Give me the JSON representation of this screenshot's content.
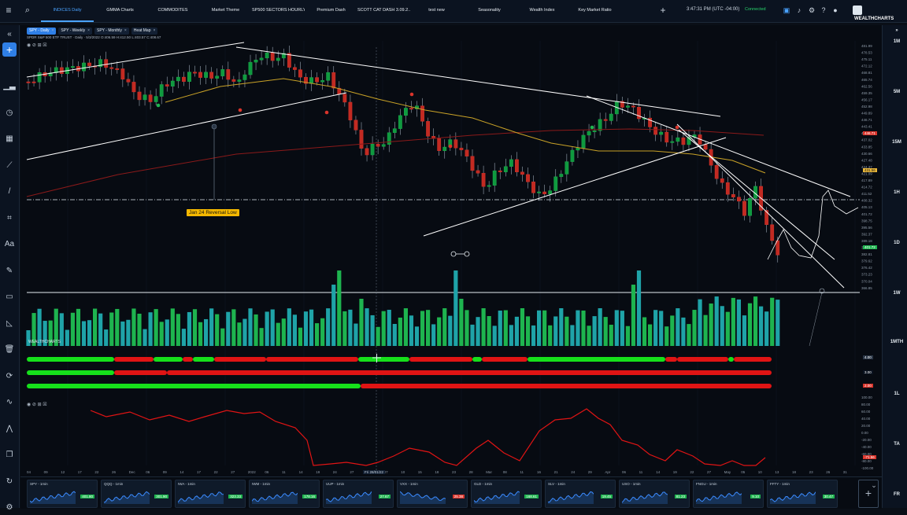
{
  "tabs": [
    {
      "label": "INDICES Daily",
      "active": true
    },
    {
      "label": "GMMA Charts",
      "active": false
    },
    {
      "label": "COMMODITES",
      "active": false
    },
    {
      "label": "Market Theme",
      "active": false
    },
    {
      "label": "SP500 SECTORS HOURLY",
      "active": false
    },
    {
      "label": "Premium Dash",
      "active": false
    },
    {
      "label": "SCOTT CAT DASH 3.09.2...",
      "active": false
    },
    {
      "label": "test new",
      "active": false
    },
    {
      "label": "Seasonality",
      "active": false
    },
    {
      "label": "Wealth Index",
      "active": false
    },
    {
      "label": "Key Market Ratio",
      "active": false
    }
  ],
  "header": {
    "time": "3:47:31 PM",
    "timezone": "(UTC -04:00)",
    "status": "Connected",
    "logo_text": "WEALTHCHARTS",
    "icons": [
      "save-icon",
      "notification-icon",
      "settings-icon",
      "help-icon",
      "user-avatar-icon"
    ]
  },
  "left_toolbar": [
    "collapse-icon",
    "add-chart-icon",
    "bar-chart-icon",
    "clock-icon",
    "calendar-icon",
    "trend-icon",
    "line-draw-icon",
    "pattern-icon",
    "text-icon",
    "pencil-icon",
    "ruler-icon",
    "measure-icon",
    "trash-icon",
    "sync-icon",
    "indicator-icon",
    "zigzag-icon",
    "copy-icon",
    "replay-icon",
    "gear-icon"
  ],
  "right_timeframes": [
    "1M",
    "5M",
    "15M",
    "1H",
    "1D",
    "1W",
    "1MTH",
    "1L",
    "TA",
    "FR"
  ],
  "chart": {
    "symbol_tabs": [
      {
        "label": "SPY - Daily",
        "active": true
      },
      {
        "label": "SPY - Weekly",
        "active": false
      },
      {
        "label": "SPY - Monthly",
        "active": false
      },
      {
        "label": "Heat Map",
        "active": false
      }
    ],
    "description": "SPDR S&P 500 ETF TRUST · Daily · 5/3/2022 O:406.59 H:412.50 L:403.57 C:408.67",
    "controls": "◉ ⊘ ⊞ ☒",
    "annotation": "Jan 24 Reversal Low",
    "watermark": "WEALTHCHARTS",
    "price_axis": [
      "481.99",
      "478.53",
      "475.11",
      "472.12",
      "468.81",
      "465.74",
      "462.56",
      "459.35",
      "456.17",
      "452.98",
      "449.89",
      "446.71",
      "443.41",
      "440.22",
      "437.02",
      "433.85",
      "430.66",
      "427.48",
      "424.37",
      "421.09",
      "417.89",
      "414.72",
      "411.52",
      "408.32",
      "405.13",
      "401.72",
      "398.75",
      "395.56",
      "392.37",
      "389.18",
      "385.99",
      "382.81",
      "379.62",
      "376.42",
      "373.23",
      "370.04",
      "366.85"
    ],
    "price_tag_red": "446.71",
    "price_tag_yellow": "431.56",
    "price_tag_green": "401.72",
    "date_axis": [
      "04",
      "09",
      "12",
      "17",
      "22",
      "26",
      "Dec",
      "06",
      "09",
      "14",
      "17",
      "22",
      "27",
      "2022",
      "06",
      "11",
      "14",
      "19",
      "24",
      "27",
      "Feb",
      "07",
      "10",
      "15",
      "18",
      "23",
      "28",
      "Mar",
      "08",
      "11",
      "16",
      "21",
      "24",
      "29",
      "Apr",
      "06",
      "11",
      "14",
      "19",
      "22",
      "27",
      "May",
      "05",
      "10",
      "13",
      "18",
      "23",
      "26",
      "31"
    ],
    "date_badge": "Fri 28/01/22",
    "indicator_values": [
      "4.00",
      "3.00",
      "2.00"
    ],
    "osc_axis": [
      "100.00",
      "80.00",
      "60.00",
      "40.00",
      "20.00",
      "0.00",
      "-20.00",
      "-40.00",
      "-60.00",
      "-80.00",
      "-100.00"
    ],
    "osc_tag": "-71.56"
  },
  "tiles": [
    {
      "name": "SPY - 1min",
      "value": "401.80",
      "up": true
    },
    {
      "name": "QQQ - 1min",
      "value": "301.90",
      "up": true
    },
    {
      "name": "IWA - 1min",
      "value": "323.33",
      "up": true
    },
    {
      "name": "IWM - 1min",
      "value": "178.16",
      "up": true
    },
    {
      "name": "UUP - 1min",
      "value": "27.67",
      "up": true
    },
    {
      "name": "VXX - 1min",
      "value": "25.38",
      "up": false
    },
    {
      "name": "GLD - 1min",
      "value": "168.61",
      "up": true
    },
    {
      "name": "SLV - 1min",
      "value": "19.45",
      "up": true
    },
    {
      "name": "USO - 1min",
      "value": "81.23",
      "up": true
    },
    {
      "name": "FNGU - 1min",
      "value": "9.10",
      "up": true
    },
    {
      "name": "FFTY - 1min",
      "value": "30.47",
      "up": true
    }
  ],
  "colors": {
    "accent": "#2f7fe6",
    "up": "#1eb44f",
    "down": "#d9342b",
    "volume": "#1fa3a8",
    "ma_yellow": "#c9a227",
    "ma_red": "#8b1a1a"
  }
}
